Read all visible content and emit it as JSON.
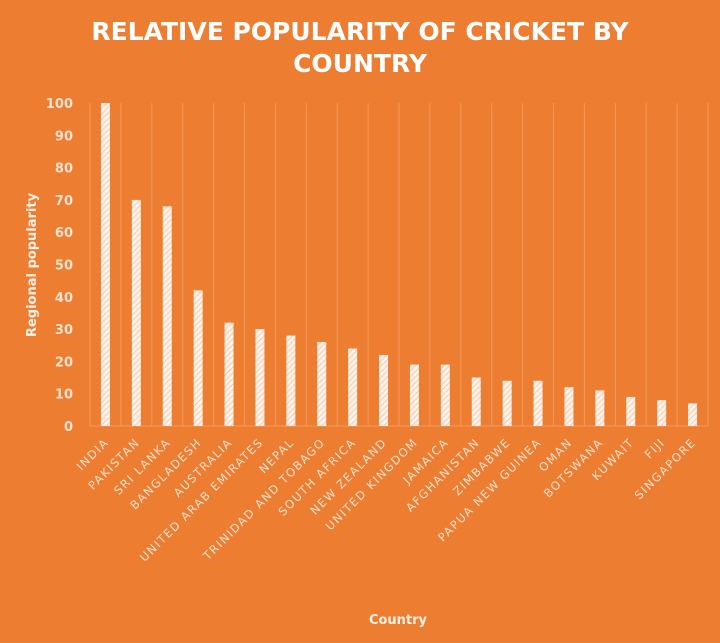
{
  "chart_data": {
    "type": "bar",
    "title": "RELATIVE POPULARITY OF CRICKET BY COUNTRY",
    "title_lines": [
      "RELATIVE POPULARITY OF CRICKET BY",
      "COUNTRY"
    ],
    "xlabel": "Country",
    "ylabel": "Regional popularity",
    "ylim": [
      0,
      100
    ],
    "yticks": [
      0,
      10,
      20,
      30,
      40,
      50,
      60,
      70,
      80,
      90,
      100
    ],
    "grid": "vertical",
    "categories": [
      "INDIA",
      "PAKISTAN",
      "SRI LANKA",
      "BANGLADESH",
      "AUSTRALIA",
      "UNITED ARAB EMIRATES",
      "NEPAL",
      "TRINIDAD AND TOBAGO",
      "SOUTH AFRICA",
      "NEW ZEALAND",
      "UNITED KINGDOM",
      "JAMAICA",
      "AFGHANISTAN",
      "ZIMBABWE",
      "PAPUA NEW GUINEA",
      "OMAN",
      "BOTSWANA",
      "KUWAIT",
      "FIJI",
      "SINGAPORE"
    ],
    "values": [
      100,
      70,
      68,
      42,
      32,
      30,
      28,
      26,
      24,
      22,
      19,
      19,
      15,
      14,
      14,
      12,
      11,
      9,
      8,
      7
    ],
    "colors": {
      "background": "#ED7D31",
      "bar": "#FBE3D0",
      "text": "#FFFFFF"
    }
  }
}
